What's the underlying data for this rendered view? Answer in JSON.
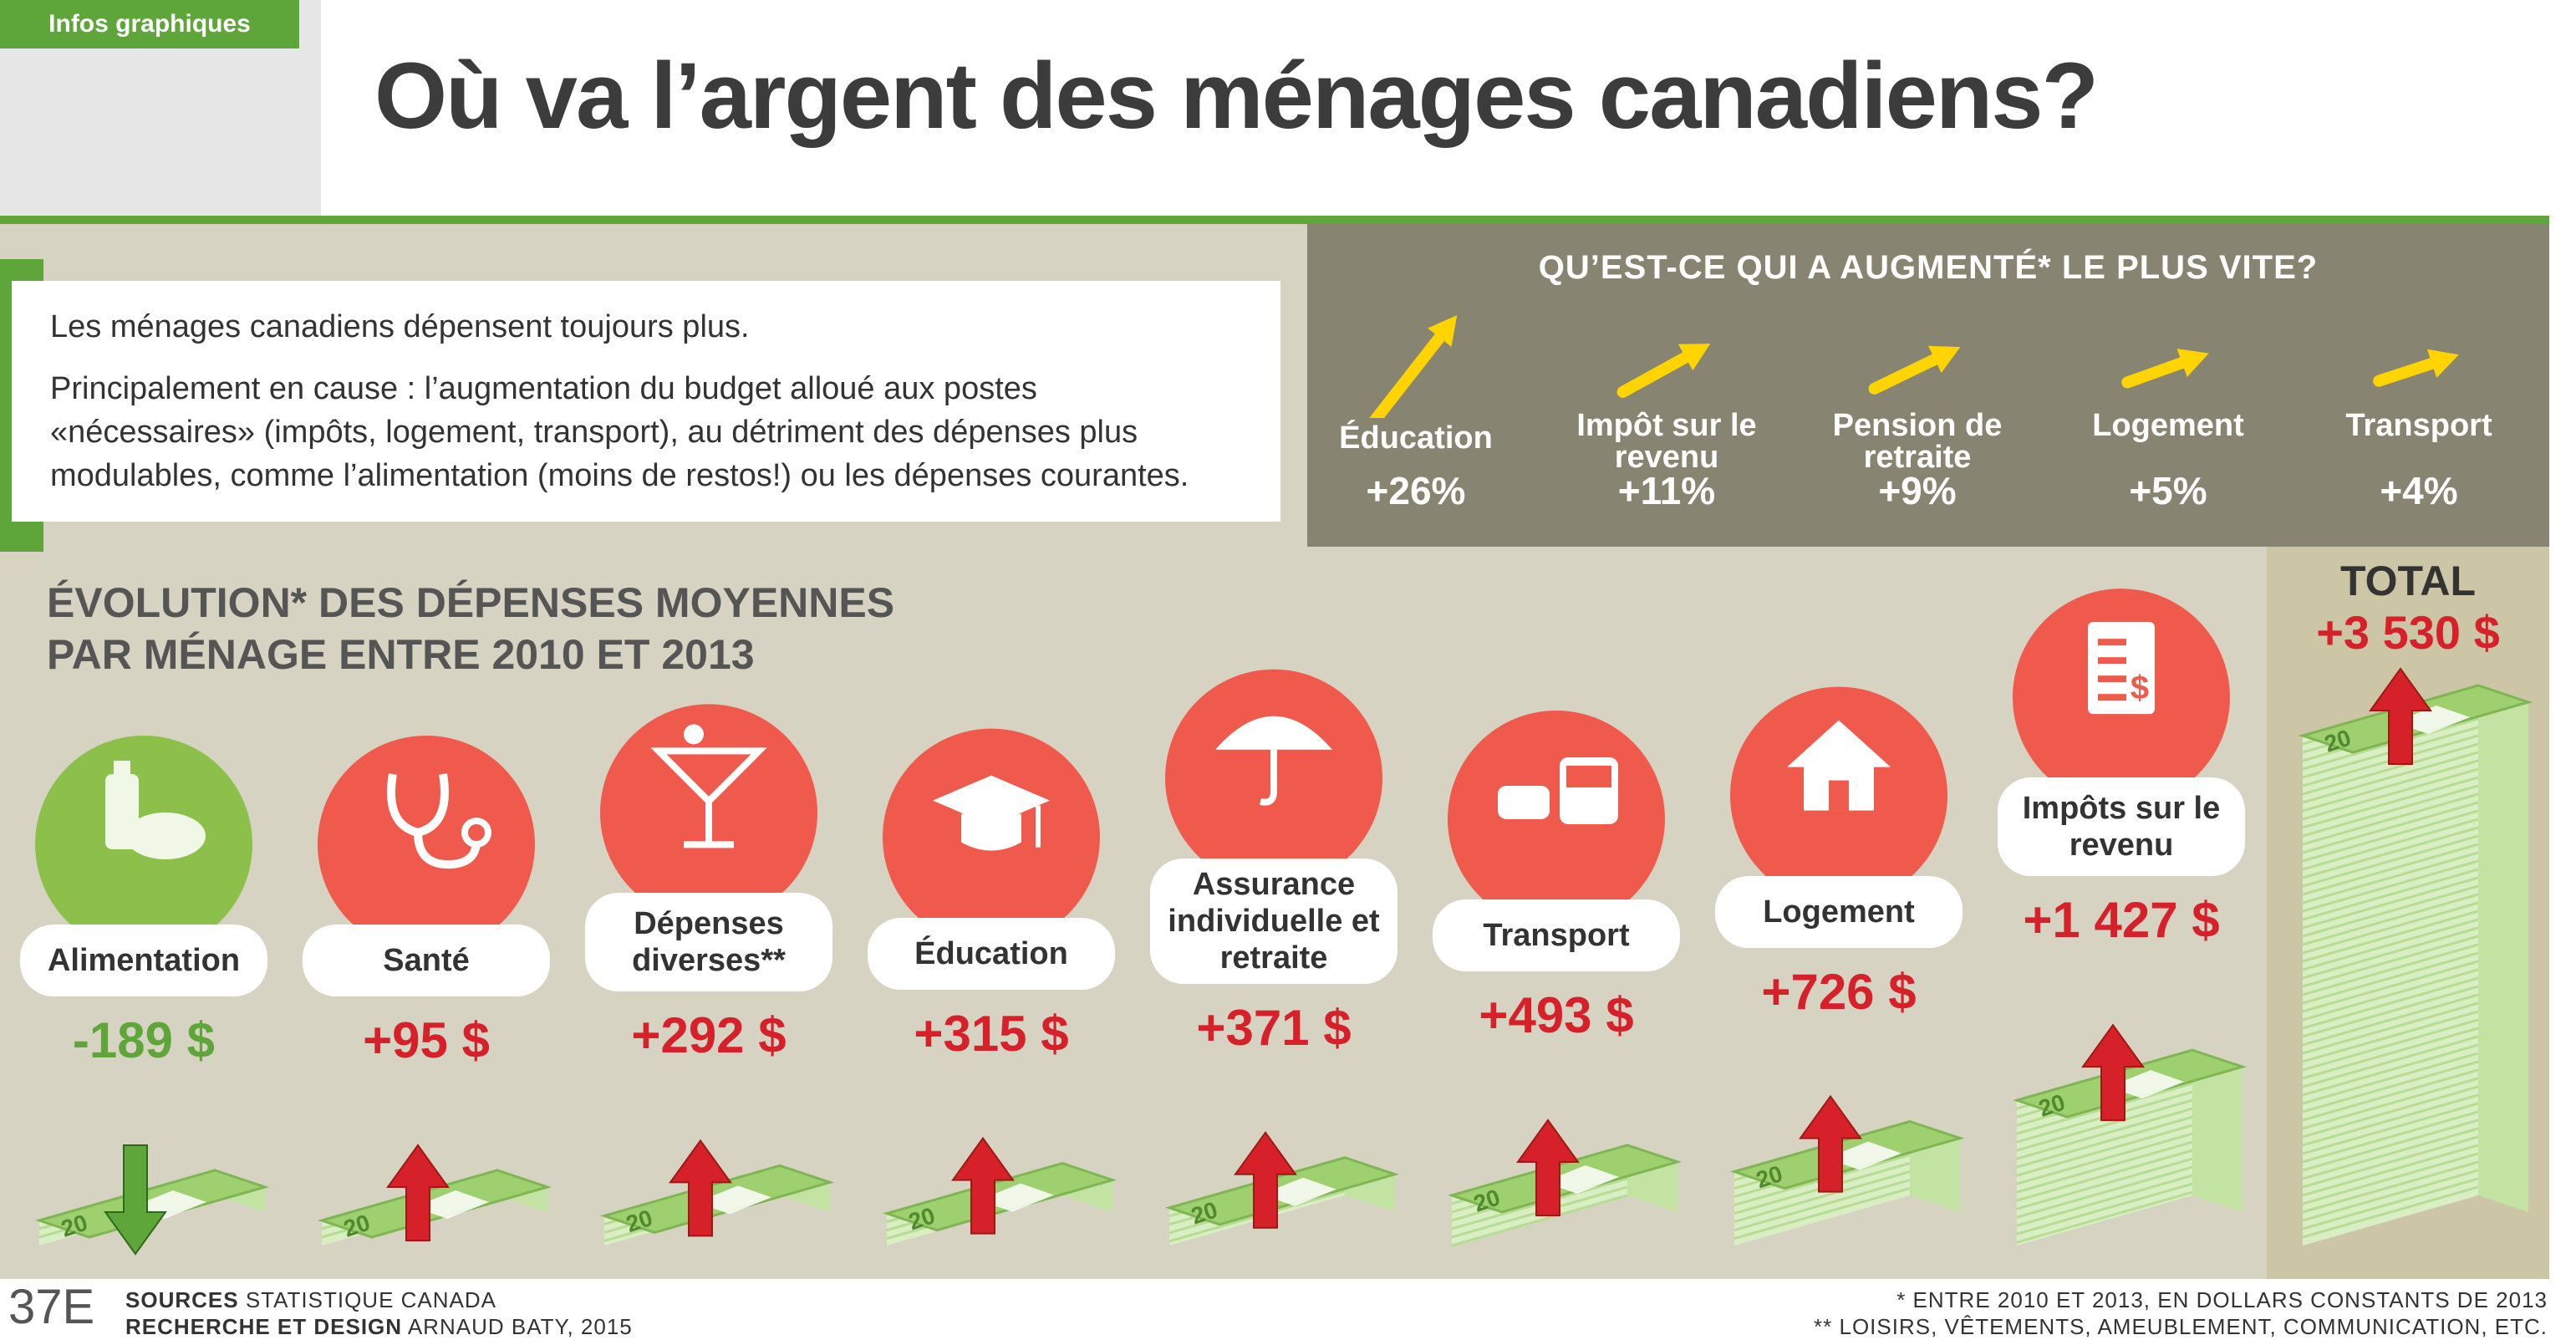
{
  "header": {
    "tag": "Infos graphiques",
    "title": "Où va l’argent des ménages canadiens?"
  },
  "intro": {
    "line1": "Les ménages canadiens dépensent toujours plus.",
    "line2a": "Principalement en cause : l’augmentation du budget alloué aux postes",
    "line2b": "«nécessaires» (impôts, logement, transport), au détriment des dépenses plus",
    "line2c": "modulables, comme l’alimentation (moins de restos!) ou les dépenses courantes."
  },
  "growth": {
    "title": "QU’EST-CE QUI A AUGMENTÉ* LE PLUS VITE?",
    "items": [
      {
        "label": "Éducation",
        "value": "+26%",
        "pct": 26
      },
      {
        "label": "Impôt sur le revenu",
        "value": "+11%",
        "pct": 11
      },
      {
        "label": "Pension de retraite",
        "value": "+9%",
        "pct": 9
      },
      {
        "label": "Logement",
        "value": "+5%",
        "pct": 5
      },
      {
        "label": "Transport",
        "value": "+4%",
        "pct": 4
      }
    ],
    "arrow_color": "#ffd400"
  },
  "evolution": {
    "title_line1": "ÉVOLUTION* DES DÉPENSES MOYENNES",
    "title_line2": "PAR MÉNAGE ENTRE 2010 ET 2013",
    "total_label": "TOTAL",
    "total_value": "+3 530 $"
  },
  "chart_data": {
    "type": "bar",
    "title": "ÉVOLUTION* DES DÉPENSES MOYENNES PAR MÉNAGE ENTRE 2010 ET 2013",
    "categories": [
      "Alimentation",
      "Santé",
      "Dépenses diverses**",
      "Éducation",
      "Assurance individuelle et retraite",
      "Transport",
      "Logement",
      "Impôts sur le revenu"
    ],
    "values": [
      -189,
      95,
      292,
      315,
      371,
      493,
      726,
      1427
    ],
    "labels": [
      "-189 $",
      "+95 $",
      "+292 $",
      "+315 $",
      "+371 $",
      "+493 $",
      "+726 $",
      "+1 427 $"
    ],
    "total": 3530,
    "icons": [
      "food-icon",
      "stethoscope-icon",
      "cocktail-icon",
      "graduation-cap-icon",
      "umbrella-icon",
      "vehicles-icon",
      "house-icon",
      "tax-form-icon"
    ],
    "colors": {
      "increase": "#d6202a",
      "decrease": "#5fa63a",
      "circle": "#ef5a4c",
      "circle_negative": "#8cc04a",
      "money": "#a8d67a"
    }
  },
  "footer": {
    "logo": "37E",
    "sources_label": "SOURCES",
    "sources_value": "STATISTIQUE CANADA",
    "design_label": "RECHERCHE ET DESIGN",
    "design_value": "ARNAUD BATY, 2015",
    "note1": "* ENTRE 2010 ET 2013, EN DOLLARS CONSTANTS DE 2013",
    "note2": "** LOISIRS, VÊTEMENTS, AMEUBLEMENT, COMMUNICATION, ETC."
  }
}
